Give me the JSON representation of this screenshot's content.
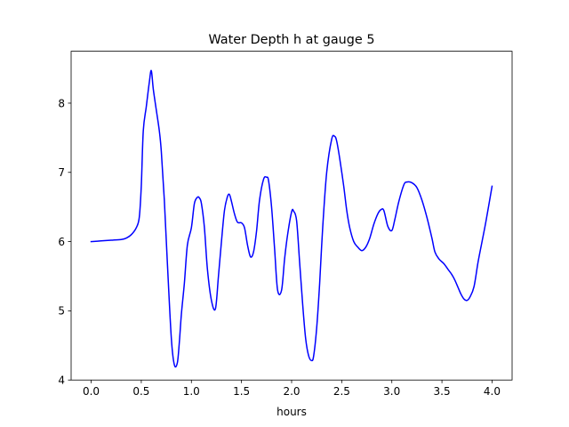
{
  "chart_data": {
    "type": "line",
    "title": "Water Depth h at gauge 5",
    "xlabel": "hours",
    "ylabel": "",
    "xlim": [
      -0.2,
      4.2
    ],
    "ylim": [
      4.0,
      8.75
    ],
    "xticks": [
      0.0,
      0.5,
      1.0,
      1.5,
      2.0,
      2.5,
      3.0,
      3.5,
      4.0
    ],
    "xtick_labels": [
      "0.0",
      "0.5",
      "1.0",
      "1.5",
      "2.0",
      "2.5",
      "3.0",
      "3.5",
      "4.0"
    ],
    "yticks": [
      4,
      5,
      6,
      7,
      8
    ],
    "ytick_labels": [
      "4",
      "5",
      "6",
      "7",
      "8"
    ],
    "grid": false,
    "series": [
      {
        "name": "",
        "color": "#0000ff",
        "x": [
          0.0,
          0.1,
          0.2,
          0.3,
          0.35,
          0.4,
          0.45,
          0.48,
          0.5,
          0.52,
          0.55,
          0.58,
          0.6,
          0.62,
          0.65,
          0.68,
          0.7,
          0.73,
          0.76,
          0.8,
          0.83,
          0.86,
          0.88,
          0.9,
          0.93,
          0.96,
          1.0,
          1.03,
          1.06,
          1.08,
          1.1,
          1.13,
          1.16,
          1.2,
          1.24,
          1.27,
          1.3,
          1.33,
          1.36,
          1.38,
          1.4,
          1.43,
          1.46,
          1.5,
          1.53,
          1.56,
          1.59,
          1.62,
          1.65,
          1.68,
          1.72,
          1.75,
          1.77,
          1.8,
          1.83,
          1.86,
          1.9,
          1.93,
          1.96,
          2.0,
          2.02,
          2.05,
          2.08,
          2.11,
          2.14,
          2.17,
          2.2,
          2.22,
          2.25,
          2.28,
          2.31,
          2.35,
          2.4,
          2.43,
          2.45,
          2.48,
          2.52,
          2.55,
          2.58,
          2.62,
          2.66,
          2.7,
          2.74,
          2.78,
          2.82,
          2.86,
          2.89,
          2.92,
          2.96,
          3.0,
          3.03,
          3.07,
          3.12,
          3.15,
          3.2,
          3.25,
          3.3,
          3.35,
          3.4,
          3.43,
          3.47,
          3.52,
          3.56,
          3.6,
          3.63,
          3.66,
          3.69,
          3.72,
          3.75,
          3.78,
          3.82,
          3.86,
          3.9,
          3.94,
          4.0
        ],
        "y": [
          6.0,
          6.01,
          6.02,
          6.03,
          6.05,
          6.1,
          6.2,
          6.35,
          6.8,
          7.6,
          7.95,
          8.3,
          8.47,
          8.2,
          7.9,
          7.6,
          7.3,
          6.6,
          5.7,
          4.6,
          4.22,
          4.25,
          4.55,
          4.95,
          5.4,
          5.95,
          6.2,
          6.55,
          6.64,
          6.63,
          6.55,
          6.2,
          5.6,
          5.15,
          5.03,
          5.5,
          6.0,
          6.45,
          6.65,
          6.68,
          6.58,
          6.4,
          6.28,
          6.27,
          6.2,
          5.95,
          5.78,
          5.85,
          6.15,
          6.6,
          6.9,
          6.93,
          6.88,
          6.5,
          5.9,
          5.3,
          5.3,
          5.75,
          6.1,
          6.43,
          6.44,
          6.3,
          5.7,
          5.1,
          4.6,
          4.35,
          4.28,
          4.35,
          4.75,
          5.4,
          6.2,
          7.0,
          7.48,
          7.52,
          7.45,
          7.2,
          6.8,
          6.45,
          6.2,
          6.0,
          5.92,
          5.87,
          5.92,
          6.05,
          6.25,
          6.4,
          6.46,
          6.45,
          6.22,
          6.16,
          6.32,
          6.58,
          6.82,
          6.86,
          6.85,
          6.78,
          6.6,
          6.35,
          6.05,
          5.85,
          5.75,
          5.68,
          5.6,
          5.52,
          5.44,
          5.34,
          5.24,
          5.17,
          5.15,
          5.2,
          5.35,
          5.7,
          6.0,
          6.3,
          6.8
        ]
      }
    ]
  }
}
